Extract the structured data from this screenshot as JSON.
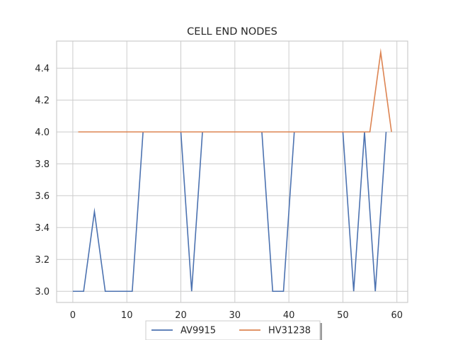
{
  "chart_data": {
    "type": "line",
    "title": "CELL END NODES",
    "xlabel": "",
    "ylabel": "",
    "xlim": [
      -3,
      62
    ],
    "ylim": [
      2.93,
      4.57
    ],
    "xticks": [
      0,
      10,
      20,
      30,
      40,
      50,
      60
    ],
    "xtick_labels": [
      "0",
      "10",
      "20",
      "30",
      "40",
      "50",
      "60"
    ],
    "yticks": [
      3.0,
      3.2,
      3.4,
      3.6,
      3.8,
      4.0,
      4.2,
      4.4
    ],
    "ytick_labels": [
      "3.0",
      "3.2",
      "3.4",
      "3.6",
      "3.8",
      "4.0",
      "4.2",
      "4.4"
    ],
    "grid": true,
    "legend_position": "bottom-center",
    "series": [
      {
        "name": "AV9915",
        "color": "#4c72b0",
        "points": [
          [
            0,
            3.0
          ],
          [
            2,
            3.0
          ],
          [
            4,
            3.5
          ],
          [
            6,
            3.0
          ],
          [
            11,
            3.0
          ],
          [
            13,
            4.0
          ],
          [
            20,
            4.0
          ],
          [
            22,
            3.0
          ],
          [
            24,
            4.0
          ],
          [
            35,
            4.0
          ],
          [
            37,
            3.0
          ],
          [
            39,
            3.0
          ],
          [
            41,
            4.0
          ],
          [
            50,
            4.0
          ],
          [
            52,
            3.0
          ],
          [
            54,
            4.0
          ],
          [
            56,
            3.0
          ],
          [
            58,
            4.0
          ]
        ]
      },
      {
        "name": "HV31238",
        "color": "#dd8452",
        "points": [
          [
            1,
            4.0
          ],
          [
            55,
            4.0
          ],
          [
            57,
            4.5
          ],
          [
            59,
            4.0
          ]
        ]
      }
    ]
  }
}
